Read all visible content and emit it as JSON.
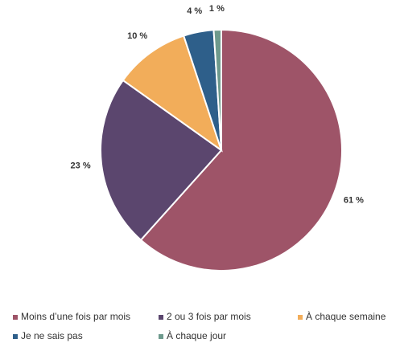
{
  "chart_data": {
    "type": "pie",
    "categories": [
      "Moins d’une fois par mois",
      "2 ou 3 fois par mois",
      "À chaque semaine",
      "Je ne sais pas",
      "À chaque jour"
    ],
    "values": [
      61,
      23,
      10,
      4,
      1
    ],
    "value_labels": [
      "61 %",
      "23 %",
      "10 %",
      "4 %",
      "1 %"
    ],
    "colors": [
      "#9e5468",
      "#5b466e",
      "#f2ad5a",
      "#2e5f8a",
      "#6e9a8d"
    ],
    "legend": "bottom"
  }
}
